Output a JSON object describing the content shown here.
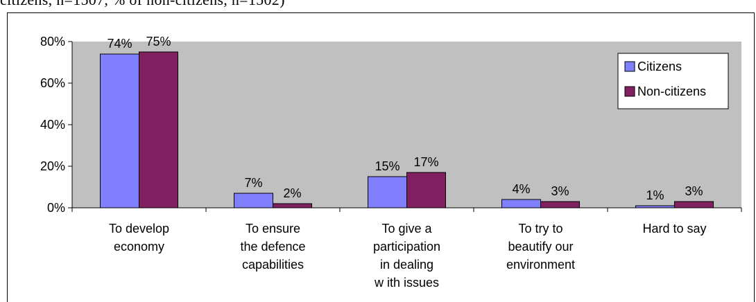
{
  "header": {
    "text": "citizens, n=1507, % of non-citizens, n=1502)"
  },
  "chart_data": {
    "type": "bar",
    "categories": [
      [
        "To develop",
        "economy"
      ],
      [
        "To ensure",
        "the defence",
        "capabilities"
      ],
      [
        "To give a",
        "participation",
        "in dealing",
        "w ith issues"
      ],
      [
        "To try to",
        "beautify our",
        "environment"
      ],
      [
        "Hard to say"
      ]
    ],
    "series": [
      {
        "name": "Citizens",
        "values": [
          74,
          7,
          15,
          4,
          1
        ],
        "labels": [
          "74%",
          "7%",
          "15%",
          "4%",
          "1%"
        ],
        "color": "#8080FF"
      },
      {
        "name": "Non-citizens",
        "values": [
          75,
          2,
          17,
          3,
          3
        ],
        "labels": [
          "75%",
          "2%",
          "17%",
          "3%",
          "3%"
        ],
        "color": "#802060"
      }
    ],
    "ylim": [
      0,
      80
    ],
    "yticks": [
      0,
      20,
      40,
      60,
      80
    ],
    "ytick_labels": [
      "0%",
      "20%",
      "40%",
      "60%",
      "80%"
    ],
    "plot_background": "#C0C0C0",
    "grid": false,
    "legend_position": "top-right"
  }
}
